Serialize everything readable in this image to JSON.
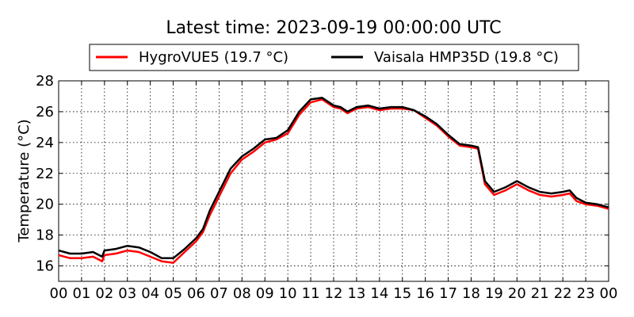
{
  "chart_data": {
    "type": "line",
    "title": "Latest time: 2023-09-19 00:00:00 UTC",
    "xlabel": "",
    "ylabel": "Temperature (°C)",
    "xlim": [
      0,
      24
    ],
    "ylim": [
      15,
      28
    ],
    "x_tick_labels": [
      "00",
      "01",
      "02",
      "03",
      "04",
      "05",
      "06",
      "07",
      "08",
      "09",
      "10",
      "11",
      "12",
      "13",
      "14",
      "15",
      "16",
      "17",
      "18",
      "19",
      "20",
      "21",
      "22",
      "23",
      "00"
    ],
    "y_ticks": [
      16,
      18,
      20,
      22,
      24,
      26,
      28
    ],
    "grid": true,
    "legend_position": "top",
    "series": [
      {
        "name": "HygroVUE5 (19.7 °C)",
        "color": "#ff0000",
        "x": [
          0,
          0.5,
          1,
          1.5,
          1.9,
          2,
          2.5,
          3,
          3.5,
          4,
          4.5,
          5,
          5.5,
          6,
          6.3,
          6.6,
          7,
          7.5,
          8,
          8.5,
          9,
          9.5,
          10,
          10.5,
          11,
          11.5,
          12,
          12.3,
          12.6,
          13,
          13.5,
          14,
          14.5,
          15,
          15.5,
          16,
          16.5,
          17,
          17.5,
          18,
          18.3,
          18.6,
          19,
          19.5,
          20,
          20.5,
          21,
          21.5,
          22,
          22.3,
          22.6,
          23,
          23.5,
          24
        ],
        "y": [
          16.7,
          16.5,
          16.5,
          16.6,
          16.3,
          16.7,
          16.8,
          17.0,
          16.9,
          16.6,
          16.3,
          16.2,
          16.9,
          17.6,
          18.2,
          19.3,
          20.5,
          22.0,
          22.9,
          23.4,
          24.0,
          24.2,
          24.6,
          25.8,
          26.6,
          26.8,
          26.3,
          26.2,
          25.9,
          26.2,
          26.3,
          26.1,
          26.2,
          26.2,
          26.1,
          25.6,
          25.1,
          24.4,
          23.8,
          23.7,
          23.6,
          21.3,
          20.6,
          20.9,
          21.3,
          20.9,
          20.6,
          20.5,
          20.6,
          20.7,
          20.2,
          20.0,
          19.9,
          19.7
        ]
      },
      {
        "name": "Vaisala HMP35D (19.8 °C)",
        "color": "#000000",
        "x": [
          0,
          0.5,
          1,
          1.5,
          1.9,
          2,
          2.5,
          3,
          3.5,
          4,
          4.5,
          5,
          5.5,
          6,
          6.3,
          6.6,
          7,
          7.5,
          8,
          8.5,
          9,
          9.5,
          10,
          10.5,
          11,
          11.5,
          12,
          12.3,
          12.6,
          13,
          13.5,
          14,
          14.5,
          15,
          15.5,
          16,
          16.5,
          17,
          17.5,
          18,
          18.3,
          18.6,
          19,
          19.5,
          20,
          20.5,
          21,
          21.5,
          22,
          22.3,
          22.6,
          23,
          23.5,
          24
        ],
        "y": [
          17.0,
          16.8,
          16.8,
          16.9,
          16.6,
          17.0,
          17.1,
          17.3,
          17.2,
          16.9,
          16.5,
          16.5,
          17.1,
          17.8,
          18.4,
          19.6,
          20.8,
          22.3,
          23.1,
          23.6,
          24.2,
          24.3,
          24.8,
          26.0,
          26.8,
          26.9,
          26.4,
          26.3,
          26.0,
          26.3,
          26.4,
          26.2,
          26.3,
          26.3,
          26.1,
          25.7,
          25.2,
          24.5,
          23.9,
          23.8,
          23.7,
          21.5,
          20.8,
          21.1,
          21.5,
          21.1,
          20.8,
          20.7,
          20.8,
          20.9,
          20.4,
          20.1,
          20.0,
          19.8
        ]
      }
    ]
  }
}
